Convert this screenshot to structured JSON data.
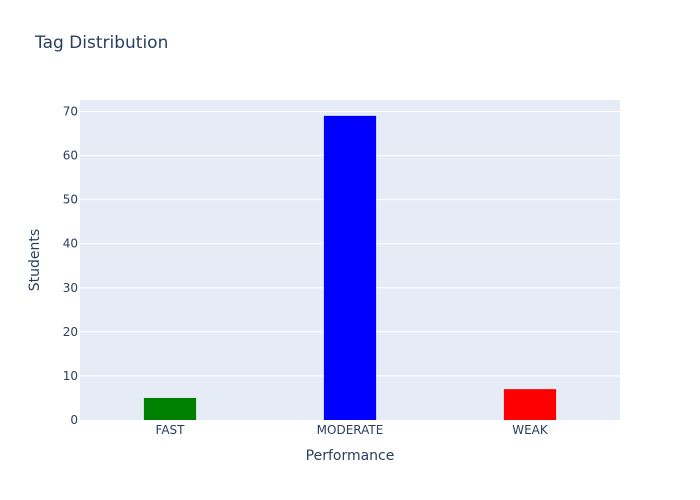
{
  "chart_data": {
    "type": "bar",
    "title": "Tag Distribution",
    "xlabel": "Performance",
    "ylabel": "Students",
    "categories": [
      "FAST",
      "MODERATE",
      "WEAK"
    ],
    "values": [
      5,
      69,
      7
    ],
    "bar_colors": [
      "#008000",
      "#0000ff",
      "#ff0000"
    ],
    "ylim": [
      0,
      72.6
    ],
    "yticks": [
      0,
      10,
      20,
      30,
      40,
      50,
      60,
      70
    ],
    "grid": true,
    "plot_background": "#e5ecf6",
    "grid_color": "#ffffff",
    "text_color": "#2a3f5f"
  }
}
